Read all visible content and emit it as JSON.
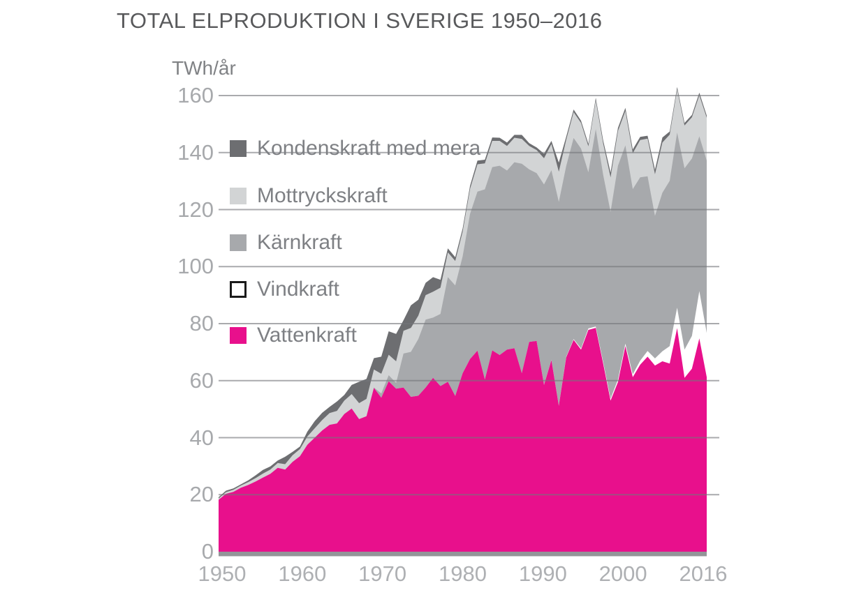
{
  "title": "TOTAL ELPRODUKTION I SVERIGE 1950–2016",
  "y_axis": {
    "unit": "TWh/år",
    "ticks": [
      0,
      20,
      40,
      60,
      80,
      100,
      120,
      140,
      160
    ],
    "max": 160
  },
  "x_axis": {
    "tick_labels": [
      "1950",
      "1960",
      "1970",
      "1980",
      "1990",
      "2000",
      "2016"
    ]
  },
  "legend": [
    {
      "label": "Kondenskraft med mera",
      "color": "#6d6e71",
      "border": "none"
    },
    {
      "label": "Mottryckskraft",
      "color": "#d2d4d5",
      "border": "none"
    },
    {
      "label": "Kärnkraft",
      "color": "#a7a9ac",
      "border": "none"
    },
    {
      "label": "Vindkraft",
      "color": "#ffffff",
      "border": "3px solid #1a1a1a"
    },
    {
      "label": "Vattenkraft",
      "color": "#e8108c",
      "border": "none"
    }
  ],
  "colors": {
    "title_text": "#58595b",
    "tick_text": "#a7a9ac",
    "legend_text": "#7e8084",
    "gridline": "#75777b",
    "baseline": "#939598"
  },
  "chart_data": {
    "type": "area",
    "stacked": true,
    "title": "TOTAL ELPRODUKTION I SVERIGE 1950–2016",
    "xlabel": "",
    "ylabel": "TWh/år",
    "ylim": [
      0,
      160
    ],
    "xlim": [
      1950,
      2016
    ],
    "grid": "horizontal",
    "legend_position": "upper-left-inside",
    "x": [
      1950,
      1951,
      1952,
      1953,
      1954,
      1955,
      1956,
      1957,
      1958,
      1959,
      1960,
      1961,
      1962,
      1963,
      1964,
      1965,
      1966,
      1967,
      1968,
      1969,
      1970,
      1971,
      1972,
      1973,
      1974,
      1975,
      1976,
      1977,
      1978,
      1979,
      1980,
      1981,
      1982,
      1983,
      1984,
      1985,
      1986,
      1987,
      1988,
      1989,
      1990,
      1991,
      1992,
      1993,
      1994,
      1995,
      1996,
      1997,
      1998,
      1999,
      2000,
      2001,
      2002,
      2003,
      2004,
      2005,
      2006,
      2007,
      2008,
      2009,
      2010,
      2011,
      2012,
      2013,
      2014,
      2015,
      2016
    ],
    "series": [
      {
        "name": "Vattenkraft",
        "color": "#e8108c",
        "values": [
          18.2,
          20.3,
          21.0,
          22.4,
          23.4,
          24.6,
          26.0,
          27.3,
          29.4,
          28.8,
          31.5,
          33.5,
          37.5,
          40.0,
          42.5,
          44.5,
          45.0,
          48.3,
          50.2,
          46.5,
          47.5,
          57.5,
          54.0,
          59.8,
          57.2,
          57.6,
          54.3,
          54.7,
          57.6,
          61.0,
          58.1,
          59.6,
          54.6,
          62.6,
          67.6,
          70.5,
          60.4,
          70.6,
          69.0,
          70.9,
          71.4,
          62.6,
          73.6,
          73.9,
          58.5,
          67.2,
          51.2,
          68.2,
          74.3,
          70.9,
          77.8,
          78.5,
          66.0,
          53.0,
          59.5,
          72.1,
          61.2,
          65.6,
          68.4,
          65.3,
          66.8,
          66.0,
          78.4,
          61.0,
          64.2,
          74.8,
          61.2
        ]
      },
      {
        "name": "Vindkraft",
        "color": "#ffffff",
        "values": [
          0,
          0,
          0,
          0,
          0,
          0,
          0,
          0,
          0,
          0,
          0,
          0,
          0,
          0,
          0,
          0,
          0,
          0,
          0,
          0,
          0,
          0,
          0,
          0,
          0,
          0,
          0,
          0,
          0,
          0,
          0,
          0,
          0,
          0,
          0,
          0,
          0,
          0,
          0,
          0,
          0,
          0,
          0,
          0,
          0.1,
          0.1,
          0.1,
          0.2,
          0.3,
          0.4,
          0.5,
          0.5,
          0.6,
          0.7,
          0.9,
          0.9,
          1.0,
          1.4,
          2.0,
          2.5,
          3.5,
          6.1,
          7.2,
          9.9,
          11.5,
          16.6,
          15.5
        ]
      },
      {
        "name": "Kärnkraft",
        "color": "#a7a9ac",
        "values": [
          0,
          0,
          0,
          0,
          0,
          0,
          0,
          0,
          0,
          0,
          0,
          0,
          0,
          0,
          0,
          0,
          0,
          0,
          0,
          0,
          0,
          0.1,
          1.5,
          2.1,
          2.0,
          11.9,
          15.8,
          19.9,
          23.8,
          21.1,
          25.3,
          36.7,
          38.8,
          41.0,
          50.9,
          55.8,
          66.7,
          64.3,
          66.4,
          62.8,
          65.2,
          73.5,
          60.5,
          58.9,
          70.2,
          66.5,
          71.4,
          66.9,
          70.5,
          70.1,
          54.8,
          69.2,
          65.6,
          65.5,
          75.0,
          69.5,
          65.0,
          64.3,
          61.3,
          50.0,
          55.6,
          58.0,
          61.4,
          63.6,
          62.2,
          54.3,
          60.5
        ]
      },
      {
        "name": "Mottryckskraft",
        "color": "#d2d4d5",
        "values": [
          0.5,
          0.6,
          0.7,
          0.8,
          1.0,
          1.2,
          1.4,
          1.5,
          1.7,
          1.9,
          2.3,
          2.5,
          2.9,
          3.3,
          3.7,
          4.1,
          4.4,
          4.7,
          5.1,
          5.6,
          6.1,
          6.3,
          6.9,
          7.2,
          7.6,
          8.0,
          8.4,
          8.2,
          8.6,
          9.1,
          9.2,
          8.7,
          8.6,
          8.7,
          8.8,
          9.6,
          9.1,
          9.2,
          8.7,
          8.6,
          8.6,
          8.7,
          8.2,
          8.1,
          9.2,
          9.2,
          10.6,
          9.2,
          9.1,
          9.0,
          9.1,
          10.1,
          11.0,
          12.1,
          12.2,
          12.1,
          12.6,
          13.1,
          13.2,
          14.6,
          17.6,
          16.2,
          15.2,
          15.0,
          14.5,
          14.4,
          15.0
        ]
      },
      {
        "name": "Kondenskraft med mera",
        "color": "#6d6e71",
        "values": [
          0.4,
          0.5,
          0.5,
          0.4,
          0.6,
          1.0,
          1.3,
          1.1,
          0.9,
          2.6,
          1.2,
          0.9,
          1.7,
          2.5,
          2.5,
          2.2,
          3.3,
          2.0,
          3.2,
          7.5,
          7.0,
          4.0,
          6.0,
          8.2,
          9.6,
          3.7,
          7.9,
          5.6,
          4.3,
          5.1,
          2.8,
          1.4,
          1.3,
          1.1,
          1.1,
          1.3,
          1.3,
          1.2,
          1.1,
          1.2,
          1.0,
          1.4,
          1.0,
          0.9,
          1.6,
          1.1,
          3.2,
          1.1,
          0.9,
          0.8,
          0.9,
          0.9,
          1.1,
          1.7,
          1.1,
          1.1,
          1.3,
          1.1,
          1.0,
          1.6,
          1.8,
          1.1,
          0.8,
          0.9,
          0.8,
          0.9,
          0.8
        ]
      }
    ]
  }
}
